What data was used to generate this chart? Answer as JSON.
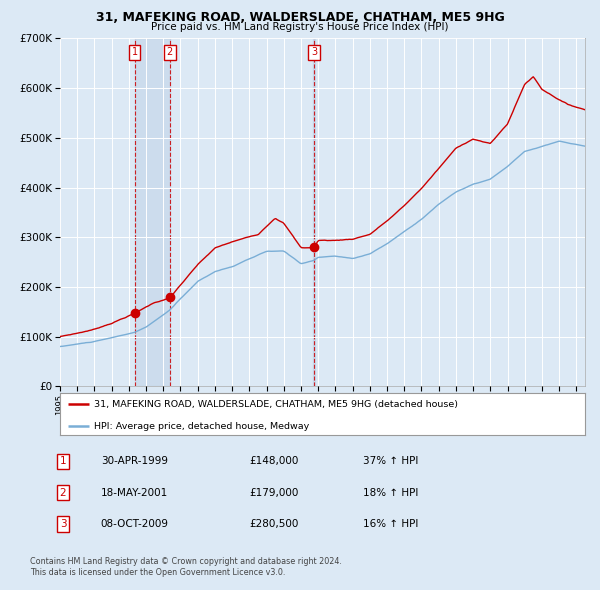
{
  "title": "31, MAFEKING ROAD, WALDERSLADE, CHATHAM, ME5 9HG",
  "subtitle": "Price paid vs. HM Land Registry's House Price Index (HPI)",
  "bg_color": "#dce9f5",
  "fig_bg_color": "#dce9f5",
  "grid_color": "#ffffff",
  "hpi_color": "#7aaed6",
  "price_color": "#cc0000",
  "transactions": [
    {
      "num": 1,
      "date_label": "30-APR-1999",
      "price": 148000,
      "price_str": "£148,000",
      "pct": "37%",
      "x_year": 1999.33
    },
    {
      "num": 2,
      "date_label": "18-MAY-2001",
      "price": 179000,
      "price_str": "£179,000",
      "pct": "18%",
      "x_year": 2001.38
    },
    {
      "num": 3,
      "date_label": "08-OCT-2009",
      "price": 280500,
      "price_str": "£280,500",
      "pct": "16%",
      "x_year": 2009.77
    }
  ],
  "ylim": [
    0,
    700000
  ],
  "yticks": [
    0,
    100000,
    200000,
    300000,
    400000,
    500000,
    600000,
    700000
  ],
  "ytick_labels": [
    "£0",
    "£100K",
    "£200K",
    "£300K",
    "£400K",
    "£500K",
    "£600K",
    "£700K"
  ],
  "xlim_start": 1995.0,
  "xlim_end": 2025.5,
  "legend_price_label": "31, MAFEKING ROAD, WALDERSLADE, CHATHAM, ME5 9HG (detached house)",
  "legend_hpi_label": "HPI: Average price, detached house, Medway",
  "footer1": "Contains HM Land Registry data © Crown copyright and database right 2024.",
  "footer2": "This data is licensed under the Open Government Licence v3.0."
}
